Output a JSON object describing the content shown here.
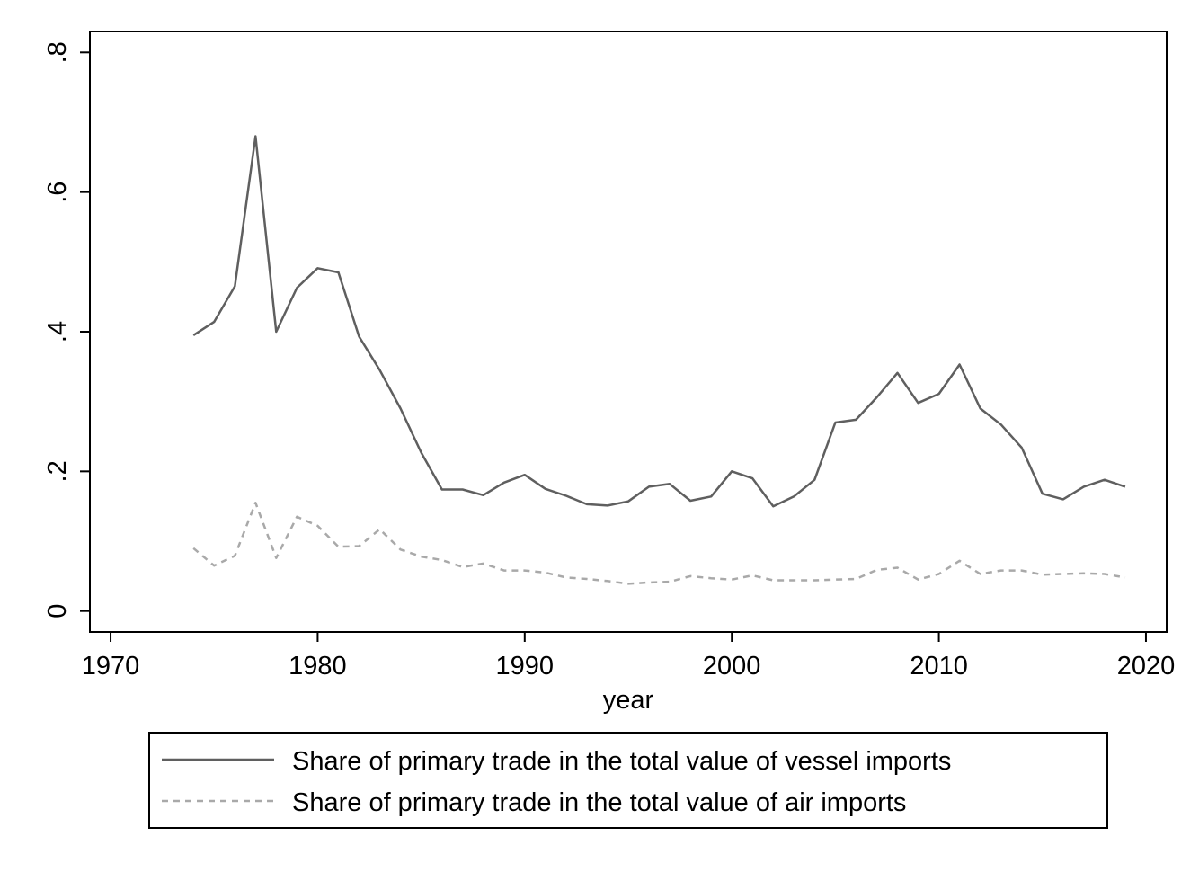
{
  "chart_data": {
    "type": "line",
    "title": "",
    "xlabel": "year",
    "ylabel": "",
    "xlim": [
      1969,
      2021
    ],
    "ylim": [
      -0.03,
      0.83
    ],
    "xticks": [
      1970,
      1980,
      1990,
      2000,
      2010,
      2020
    ],
    "xtick_labels": [
      "1970",
      "1980",
      "1990",
      "2000",
      "2010",
      "2020"
    ],
    "yticks": [
      0,
      0.2,
      0.4,
      0.6,
      0.8
    ],
    "ytick_labels": [
      "0",
      ".2",
      ".4",
      ".6",
      ".8"
    ],
    "grid": false,
    "legend_position": "bottom",
    "x": [
      1974,
      1975,
      1976,
      1977,
      1978,
      1979,
      1980,
      1981,
      1982,
      1983,
      1984,
      1985,
      1986,
      1987,
      1988,
      1989,
      1990,
      1991,
      1992,
      1993,
      1994,
      1995,
      1996,
      1997,
      1998,
      1999,
      2000,
      2001,
      2002,
      2003,
      2004,
      2005,
      2006,
      2007,
      2008,
      2009,
      2010,
      2011,
      2012,
      2013,
      2014,
      2015,
      2016,
      2017,
      2018,
      2019
    ],
    "series": [
      {
        "name": "Share of primary trade in the total value of vessel imports",
        "color": "#5f5f5f",
        "dash": "solid",
        "values": [
          0.395,
          0.414,
          0.465,
          0.68,
          0.4,
          0.463,
          0.491,
          0.485,
          0.393,
          0.345,
          0.29,
          0.227,
          0.174,
          0.174,
          0.166,
          0.184,
          0.195,
          0.175,
          0.165,
          0.153,
          0.151,
          0.157,
          0.178,
          0.182,
          0.158,
          0.164,
          0.2,
          0.19,
          0.15,
          0.164,
          0.188,
          0.27,
          0.274,
          0.306,
          0.341,
          0.298,
          0.311,
          0.353,
          0.29,
          0.267,
          0.234,
          0.168,
          0.16,
          0.178,
          0.188,
          0.178
        ]
      },
      {
        "name": "Share of primary trade in the total value of air imports",
        "color": "#a9a9a9",
        "dash": "dashed",
        "values": [
          0.09,
          0.065,
          0.079,
          0.155,
          0.076,
          0.135,
          0.122,
          0.092,
          0.093,
          0.117,
          0.088,
          0.078,
          0.073,
          0.063,
          0.068,
          0.058,
          0.058,
          0.055,
          0.048,
          0.046,
          0.043,
          0.039,
          0.041,
          0.042,
          0.05,
          0.047,
          0.045,
          0.051,
          0.044,
          0.044,
          0.044,
          0.045,
          0.046,
          0.059,
          0.062,
          0.045,
          0.053,
          0.072,
          0.053,
          0.058,
          0.058,
          0.052,
          0.053,
          0.054,
          0.053,
          0.048
        ]
      }
    ]
  }
}
